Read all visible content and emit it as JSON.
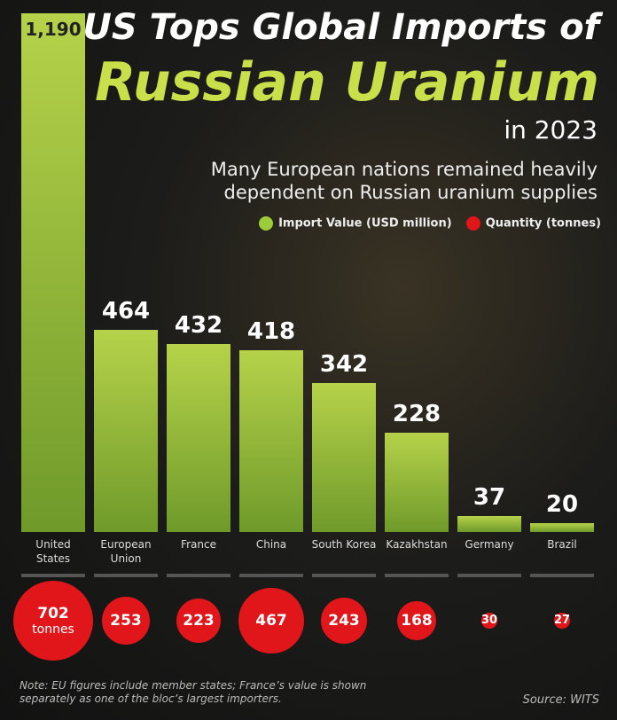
{
  "chart_data": {
    "type": "bar",
    "title": "US Tops Global Imports of",
    "title_highlight": "Russian Uranium",
    "title_year": "in 2023",
    "subtitle": "Many European nations remained heavily dependent on Russian uranium supplies",
    "categories": [
      "United States",
      "European Union",
      "France",
      "China",
      "South Korea",
      "Kazakhstan",
      "Germany",
      "Brazil"
    ],
    "series": [
      {
        "name": "Import Value (USD million)",
        "color": "#9ccc3a",
        "values": [
          1190,
          464,
          432,
          418,
          342,
          228,
          37,
          20
        ],
        "value_labels": [
          "1,190",
          "464",
          "432",
          "418",
          "342",
          "228",
          "37",
          "20"
        ]
      },
      {
        "name": "Quantity (tonnes)",
        "color": "#e0161b",
        "values": [
          702,
          253,
          223,
          467,
          243,
          168,
          30,
          27
        ]
      }
    ],
    "quantity_unit": "tonnes",
    "ylim": [
      0,
      1190
    ],
    "note": "Note: EU figures include member states; France’s value is shown separately as one of the bloc’s largest importers.",
    "source": "Source: WITS"
  }
}
